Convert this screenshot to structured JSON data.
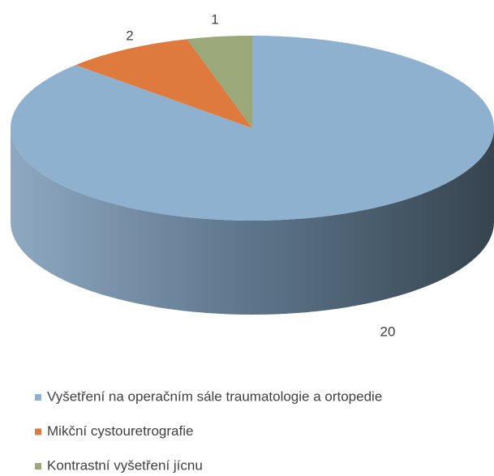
{
  "chart_data": {
    "type": "pie",
    "categories": [
      "Vyšetření na operačním sále traumatologie a ortopedie",
      "Mikční cystouretrografie",
      "Kontrastní vyšetření jícnu"
    ],
    "values": [
      20,
      2,
      1
    ],
    "colors": [
      "#8fb1d0",
      "#df7a3e",
      "#9ba879"
    ],
    "legend": "bottom"
  }
}
